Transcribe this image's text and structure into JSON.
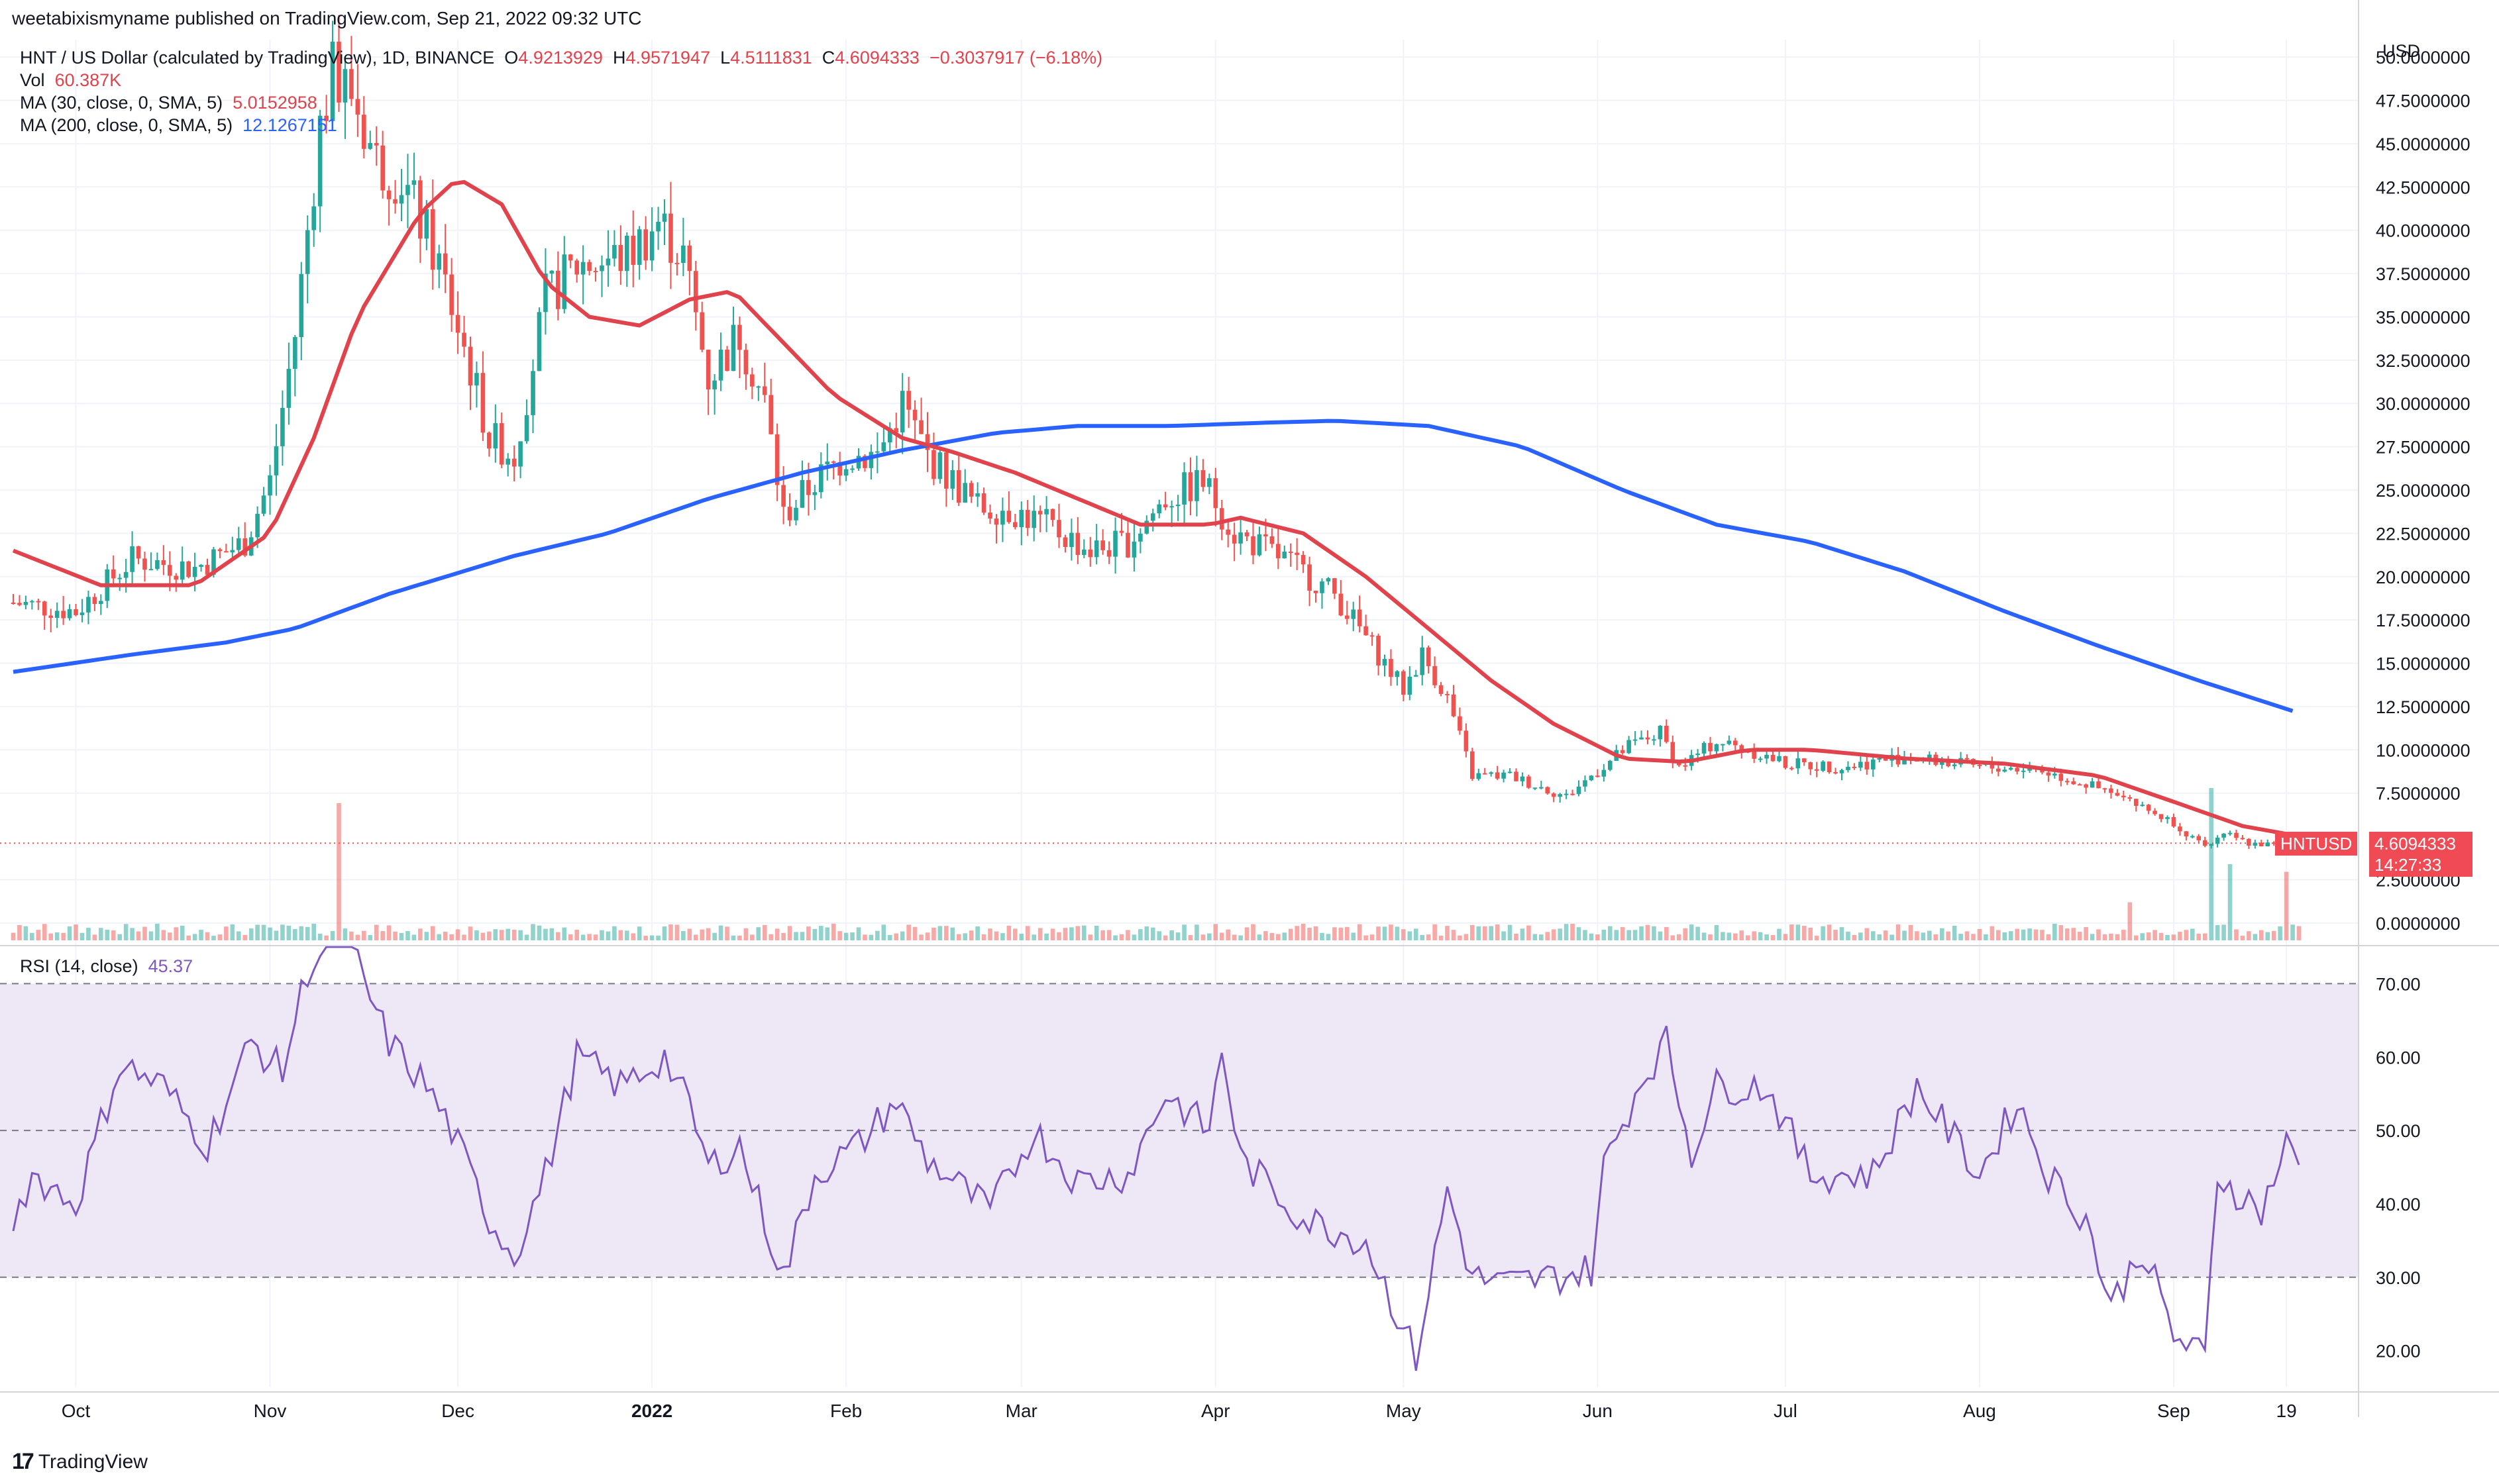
{
  "header": {
    "published": "weetabixismyname published on TradingView.com, Sep 21, 2022 09:32 UTC"
  },
  "legend": {
    "symbol_line": "HNT / US Dollar (calculated by TradingView), 1D, BINANCE",
    "o_label": "O",
    "o_value": "4.9213929",
    "h_label": "H",
    "h_value": "4.9571947",
    "l_label": "L",
    "l_value": "4.5111831",
    "c_label": "C",
    "c_value": "4.6094333",
    "change": "−0.3037917 (−6.18%)",
    "vol_label": "Vol",
    "vol_value": "60.387K",
    "ma30_label": "MA (30, close, 0, SMA, 5)",
    "ma30_value": "5.0152958",
    "ma200_label": "MA (200, close, 0, SMA, 5)",
    "ma200_value": "12.1267151",
    "rsi_label": "RSI (14, close)",
    "rsi_value": "45.37"
  },
  "price_tag": {
    "symbol": "HNTUSD",
    "price": "4.6094333",
    "countdown": "14:27:33"
  },
  "footer": {
    "brand": "TradingView",
    "logo_text": "17"
  },
  "colors": {
    "up": "#26a69a",
    "down": "#ef5350",
    "ma30": "#e0434c",
    "ma200": "#2962ff",
    "rsi": "#7e57c2",
    "rsi_band": "#ede7f6"
  },
  "chart_data": [
    {
      "type": "candlestick",
      "title": "HNT / US Dollar (calculated by TradingView), 1D, BINANCE",
      "currency_label": "USD",
      "ylim": [
        -1,
        51
      ],
      "y_ticks": [
        "0.0000000",
        "2.5000000",
        "7.5000000",
        "10.0000000",
        "12.5000000",
        "15.0000000",
        "17.5000000",
        "20.0000000",
        "22.5000000",
        "25.0000000",
        "27.5000000",
        "30.0000000",
        "32.5000000",
        "35.0000000",
        "37.5000000",
        "40.0000000",
        "42.5000000",
        "45.0000000",
        "47.5000000",
        "50.0000000"
      ],
      "x_ticks": [
        "Oct",
        "Nov",
        "Dec",
        "2022",
        "Feb",
        "Mar",
        "Apr",
        "May",
        "Jun",
        "Jul",
        "Aug",
        "Sep",
        "19"
      ],
      "x_start": "2021-09-21",
      "x_end": "2022-09-21",
      "close_anchors": [
        {
          "date": "2021-09-21",
          "close": 18.5
        },
        {
          "date": "2021-10-01",
          "close": 18.0
        },
        {
          "date": "2021-10-10",
          "close": 21.0
        },
        {
          "date": "2021-10-20",
          "close": 20.5
        },
        {
          "date": "2021-10-28",
          "close": 22.0
        },
        {
          "date": "2021-11-01",
          "close": 25.5
        },
        {
          "date": "2021-11-05",
          "close": 34.0
        },
        {
          "date": "2021-11-09",
          "close": 46.0
        },
        {
          "date": "2021-11-11",
          "close": 49.0
        },
        {
          "date": "2021-11-14",
          "close": 48.0
        },
        {
          "date": "2021-11-18",
          "close": 44.0
        },
        {
          "date": "2021-11-22",
          "close": 43.0
        },
        {
          "date": "2021-11-28",
          "close": 38.0
        },
        {
          "date": "2021-12-03",
          "close": 32.0
        },
        {
          "date": "2021-12-06",
          "close": 28.0
        },
        {
          "date": "2021-12-10",
          "close": 27.0
        },
        {
          "date": "2021-12-15",
          "close": 36.0
        },
        {
          "date": "2021-12-20",
          "close": 38.0
        },
        {
          "date": "2021-12-28",
          "close": 38.5
        },
        {
          "date": "2022-01-02",
          "close": 40.5
        },
        {
          "date": "2022-01-06",
          "close": 38.5
        },
        {
          "date": "2022-01-10",
          "close": 31.5
        },
        {
          "date": "2022-01-15",
          "close": 34.0
        },
        {
          "date": "2022-01-19",
          "close": 30.0
        },
        {
          "date": "2022-01-22",
          "close": 23.5
        },
        {
          "date": "2022-01-27",
          "close": 25.5
        },
        {
          "date": "2022-02-01",
          "close": 27.0
        },
        {
          "date": "2022-02-06",
          "close": 27.0
        },
        {
          "date": "2022-02-10",
          "close": 30.0
        },
        {
          "date": "2022-02-14",
          "close": 27.0
        },
        {
          "date": "2022-02-22",
          "close": 24.0
        },
        {
          "date": "2022-02-26",
          "close": 24.0
        },
        {
          "date": "2022-03-05",
          "close": 23.0
        },
        {
          "date": "2022-03-12",
          "close": 21.5
        },
        {
          "date": "2022-03-18",
          "close": 22.0
        },
        {
          "date": "2022-03-24",
          "close": 24.5
        },
        {
          "date": "2022-03-30",
          "close": 25.5
        },
        {
          "date": "2022-04-04",
          "close": 22.5
        },
        {
          "date": "2022-04-12",
          "close": 21.0
        },
        {
          "date": "2022-04-20",
          "close": 19.0
        },
        {
          "date": "2022-04-28",
          "close": 15.0
        },
        {
          "date": "2022-05-01",
          "close": 13.5
        },
        {
          "date": "2022-05-04",
          "close": 15.5
        },
        {
          "date": "2022-05-08",
          "close": 13.0
        },
        {
          "date": "2022-05-12",
          "close": 8.5
        },
        {
          "date": "2022-05-18",
          "close": 8.5
        },
        {
          "date": "2022-05-27",
          "close": 7.3
        },
        {
          "date": "2022-05-31",
          "close": 8.5
        },
        {
          "date": "2022-06-06",
          "close": 10.2
        },
        {
          "date": "2022-06-11",
          "close": 11.0
        },
        {
          "date": "2022-06-14",
          "close": 9.0
        },
        {
          "date": "2022-06-20",
          "close": 10.5
        },
        {
          "date": "2022-06-25",
          "close": 10.0
        },
        {
          "date": "2022-07-01",
          "close": 9.2
        },
        {
          "date": "2022-07-10",
          "close": 9.0
        },
        {
          "date": "2022-07-20",
          "close": 9.6
        },
        {
          "date": "2022-08-01",
          "close": 9.0
        },
        {
          "date": "2022-08-10",
          "close": 8.9
        },
        {
          "date": "2022-08-18",
          "close": 8.0
        },
        {
          "date": "2022-08-25",
          "close": 7.0
        },
        {
          "date": "2022-09-01",
          "close": 5.8
        },
        {
          "date": "2022-09-06",
          "close": 4.3
        },
        {
          "date": "2022-09-09",
          "close": 5.2
        },
        {
          "date": "2022-09-13",
          "close": 4.6
        },
        {
          "date": "2022-09-17",
          "close": 4.5
        },
        {
          "date": "2022-09-21",
          "close": 4.6094333
        }
      ],
      "ma30_points": [
        {
          "date": "2021-09-21",
          "value": 21.5
        },
        {
          "date": "2021-10-05",
          "value": 19.5
        },
        {
          "date": "2021-10-20",
          "value": 19.5
        },
        {
          "date": "2021-11-01",
          "value": 22.5
        },
        {
          "date": "2021-11-08",
          "value": 28.0
        },
        {
          "date": "2021-11-15",
          "value": 35.0
        },
        {
          "date": "2021-11-25",
          "value": 41.0
        },
        {
          "date": "2021-12-01",
          "value": 43.0
        },
        {
          "date": "2021-12-08",
          "value": 41.5
        },
        {
          "date": "2021-12-15",
          "value": 37.0
        },
        {
          "date": "2021-12-22",
          "value": 35.0
        },
        {
          "date": "2021-12-30",
          "value": 34.5
        },
        {
          "date": "2022-01-07",
          "value": 36.0
        },
        {
          "date": "2022-01-14",
          "value": 36.5
        },
        {
          "date": "2022-01-22",
          "value": 33.5
        },
        {
          "date": "2022-01-30",
          "value": 30.5
        },
        {
          "date": "2022-02-10",
          "value": 28.0
        },
        {
          "date": "2022-02-18",
          "value": 27.2
        },
        {
          "date": "2022-02-28",
          "value": 26.0
        },
        {
          "date": "2022-03-10",
          "value": 24.5
        },
        {
          "date": "2022-03-20",
          "value": 23.0
        },
        {
          "date": "2022-03-31",
          "value": 23.0
        },
        {
          "date": "2022-04-05",
          "value": 23.4
        },
        {
          "date": "2022-04-15",
          "value": 22.5
        },
        {
          "date": "2022-04-25",
          "value": 20.0
        },
        {
          "date": "2022-05-05",
          "value": 17.0
        },
        {
          "date": "2022-05-15",
          "value": 14.0
        },
        {
          "date": "2022-05-25",
          "value": 11.5
        },
        {
          "date": "2022-06-05",
          "value": 9.5
        },
        {
          "date": "2022-06-15",
          "value": 9.3
        },
        {
          "date": "2022-06-25",
          "value": 10.0
        },
        {
          "date": "2022-07-05",
          "value": 10.0
        },
        {
          "date": "2022-07-20",
          "value": 9.5
        },
        {
          "date": "2022-08-05",
          "value": 9.2
        },
        {
          "date": "2022-08-20",
          "value": 8.5
        },
        {
          "date": "2022-09-01",
          "value": 7.0
        },
        {
          "date": "2022-09-12",
          "value": 5.6
        },
        {
          "date": "2022-09-21",
          "value": 5.0152958
        }
      ],
      "ma200_points": [
        {
          "date": "2021-09-21",
          "value": 14.5
        },
        {
          "date": "2021-10-10",
          "value": 15.5
        },
        {
          "date": "2021-10-25",
          "value": 16.2
        },
        {
          "date": "2021-11-05",
          "value": 17.0
        },
        {
          "date": "2021-11-20",
          "value": 19.0
        },
        {
          "date": "2021-12-10",
          "value": 21.2
        },
        {
          "date": "2021-12-25",
          "value": 22.5
        },
        {
          "date": "2022-01-10",
          "value": 24.5
        },
        {
          "date": "2022-01-25",
          "value": 26.0
        },
        {
          "date": "2022-02-10",
          "value": 27.3
        },
        {
          "date": "2022-02-25",
          "value": 28.3
        },
        {
          "date": "2022-03-10",
          "value": 28.7
        },
        {
          "date": "2022-03-25",
          "value": 28.7
        },
        {
          "date": "2022-04-10",
          "value": 28.9
        },
        {
          "date": "2022-04-20",
          "value": 29.0
        },
        {
          "date": "2022-05-05",
          "value": 28.7
        },
        {
          "date": "2022-05-20",
          "value": 27.5
        },
        {
          "date": "2022-06-05",
          "value": 25.0
        },
        {
          "date": "2022-06-20",
          "value": 23.0
        },
        {
          "date": "2022-07-05",
          "value": 22.0
        },
        {
          "date": "2022-07-20",
          "value": 20.3
        },
        {
          "date": "2022-08-05",
          "value": 18.0
        },
        {
          "date": "2022-08-20",
          "value": 16.0
        },
        {
          "date": "2022-09-05",
          "value": 14.0
        },
        {
          "date": "2022-09-21",
          "value": 12.1267151
        }
      ],
      "volume_spikes": [
        {
          "date": "2021-11-12",
          "level": 0.9
        },
        {
          "date": "2022-09-07",
          "level": 1.0
        },
        {
          "date": "2022-09-10",
          "level": 0.5
        },
        {
          "date": "2022-08-25",
          "level": 0.25
        },
        {
          "date": "2022-09-19",
          "level": 0.45
        }
      ]
    },
    {
      "type": "line",
      "title": "RSI (14, close)",
      "ylim": [
        15,
        75
      ],
      "y_ticks": [
        "20.00",
        "30.00",
        "40.00",
        "50.00",
        "60.00",
        "70.00"
      ],
      "band": [
        30,
        70
      ],
      "midline": 50,
      "points": [
        {
          "date": "2021-09-21",
          "value": 38
        },
        {
          "date": "2021-09-24",
          "value": 44
        },
        {
          "date": "2021-10-01",
          "value": 40
        },
        {
          "date": "2021-10-08",
          "value": 59
        },
        {
          "date": "2021-10-15",
          "value": 56
        },
        {
          "date": "2021-10-22",
          "value": 48
        },
        {
          "date": "2021-10-29",
          "value": 62
        },
        {
          "date": "2021-11-03",
          "value": 58
        },
        {
          "date": "2021-11-07",
          "value": 72
        },
        {
          "date": "2021-11-13",
          "value": 78
        },
        {
          "date": "2021-11-16",
          "value": 70
        },
        {
          "date": "2021-11-20",
          "value": 62
        },
        {
          "date": "2021-11-26",
          "value": 56
        },
        {
          "date": "2021-11-30",
          "value": 50
        },
        {
          "date": "2021-12-06",
          "value": 38
        },
        {
          "date": "2021-12-10",
          "value": 33
        },
        {
          "date": "2021-12-15",
          "value": 44
        },
        {
          "date": "2021-12-20",
          "value": 60
        },
        {
          "date": "2021-12-27",
          "value": 56
        },
        {
          "date": "2022-01-03",
          "value": 60
        },
        {
          "date": "2022-01-07",
          "value": 53
        },
        {
          "date": "2022-01-10",
          "value": 45
        },
        {
          "date": "2022-01-15",
          "value": 48
        },
        {
          "date": "2022-01-22",
          "value": 30
        },
        {
          "date": "2022-01-27",
          "value": 44
        },
        {
          "date": "2022-02-03",
          "value": 48
        },
        {
          "date": "2022-02-09",
          "value": 54
        },
        {
          "date": "2022-02-14",
          "value": 46
        },
        {
          "date": "2022-02-24",
          "value": 39
        },
        {
          "date": "2022-03-03",
          "value": 50
        },
        {
          "date": "2022-03-10",
          "value": 43
        },
        {
          "date": "2022-03-18",
          "value": 44
        },
        {
          "date": "2022-03-24",
          "value": 55
        },
        {
          "date": "2022-03-31",
          "value": 50
        },
        {
          "date": "2022-04-02",
          "value": 61
        },
        {
          "date": "2022-04-05",
          "value": 46
        },
        {
          "date": "2022-04-15",
          "value": 38
        },
        {
          "date": "2022-04-25",
          "value": 35
        },
        {
          "date": "2022-04-30",
          "value": 25
        },
        {
          "date": "2022-05-03",
          "value": 19
        },
        {
          "date": "2022-05-08",
          "value": 42
        },
        {
          "date": "2022-05-12",
          "value": 30
        },
        {
          "date": "2022-05-17",
          "value": 29
        },
        {
          "date": "2022-05-25",
          "value": 30
        },
        {
          "date": "2022-05-31",
          "value": 31
        },
        {
          "date": "2022-06-02",
          "value": 45
        },
        {
          "date": "2022-06-08",
          "value": 57
        },
        {
          "date": "2022-06-12",
          "value": 62
        },
        {
          "date": "2022-06-16",
          "value": 47
        },
        {
          "date": "2022-06-20",
          "value": 56
        },
        {
          "date": "2022-06-28",
          "value": 56
        },
        {
          "date": "2022-07-05",
          "value": 44
        },
        {
          "date": "2022-07-15",
          "value": 44
        },
        {
          "date": "2022-07-22",
          "value": 56
        },
        {
          "date": "2022-08-01",
          "value": 44
        },
        {
          "date": "2022-08-07",
          "value": 54
        },
        {
          "date": "2022-08-12",
          "value": 44
        },
        {
          "date": "2022-08-18",
          "value": 38
        },
        {
          "date": "2022-08-22",
          "value": 26
        },
        {
          "date": "2022-08-27",
          "value": 34
        },
        {
          "date": "2022-09-01",
          "value": 22
        },
        {
          "date": "2022-09-06",
          "value": 19
        },
        {
          "date": "2022-09-08",
          "value": 44
        },
        {
          "date": "2022-09-12",
          "value": 41
        },
        {
          "date": "2022-09-15",
          "value": 39
        },
        {
          "date": "2022-09-19",
          "value": 48
        },
        {
          "date": "2022-09-21",
          "value": 45.37
        }
      ]
    }
  ]
}
